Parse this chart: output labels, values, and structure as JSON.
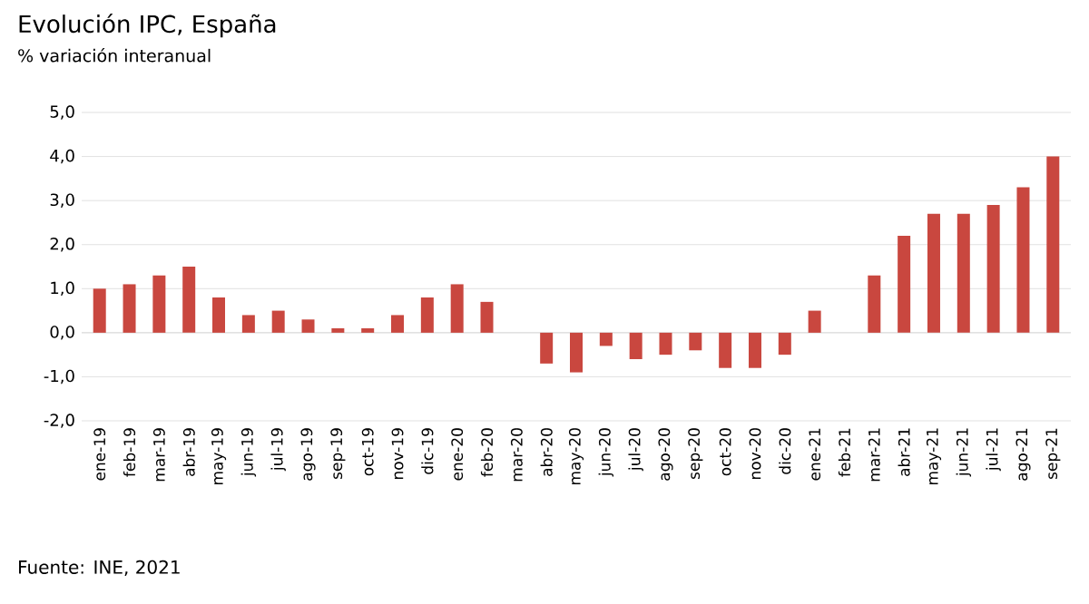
{
  "chart_data": {
    "type": "bar",
    "title": "Evolución IPC, España",
    "subtitle": "% variación interanual",
    "categories": [
      "ene-19",
      "feb-19",
      "mar-19",
      "abr-19",
      "may-19",
      "jun-19",
      "jul-19",
      "ago-19",
      "sep-19",
      "oct-19",
      "nov-19",
      "dic-19",
      "ene-20",
      "feb-20",
      "mar-20",
      "abr-20",
      "may-20",
      "jun-20",
      "jul-20",
      "ago-20",
      "sep-20",
      "oct-20",
      "nov-20",
      "dic-20",
      "ene-21",
      "feb-21",
      "mar-21",
      "abr-21",
      "may-21",
      "jun-21",
      "jul-21",
      "ago-21",
      "sep-21"
    ],
    "values": [
      1.0,
      1.1,
      1.3,
      1.5,
      0.8,
      0.4,
      0.5,
      0.3,
      0.1,
      0.1,
      0.4,
      0.8,
      1.1,
      0.7,
      0.0,
      -0.7,
      -0.9,
      -0.3,
      -0.6,
      -0.5,
      -0.4,
      -0.8,
      -0.8,
      -0.5,
      0.5,
      0.0,
      1.3,
      2.2,
      2.7,
      2.7,
      2.9,
      3.3,
      4.0
    ],
    "color": "#c9473f",
    "ylim": [
      -2,
      5
    ],
    "yticks": [
      {
        "value": -2,
        "label": "-2,0"
      },
      {
        "value": -1,
        "label": "-1,0"
      },
      {
        "value": 0,
        "label": "0,0"
      },
      {
        "value": 1,
        "label": "1,0"
      },
      {
        "value": 2,
        "label": "2,0"
      },
      {
        "value": 3,
        "label": "3,0"
      },
      {
        "value": 4,
        "label": "4,0"
      },
      {
        "value": 5,
        "label": "5,0"
      }
    ],
    "grid": "y",
    "annotations": [
      "Fuente: INE, 2021"
    ]
  }
}
